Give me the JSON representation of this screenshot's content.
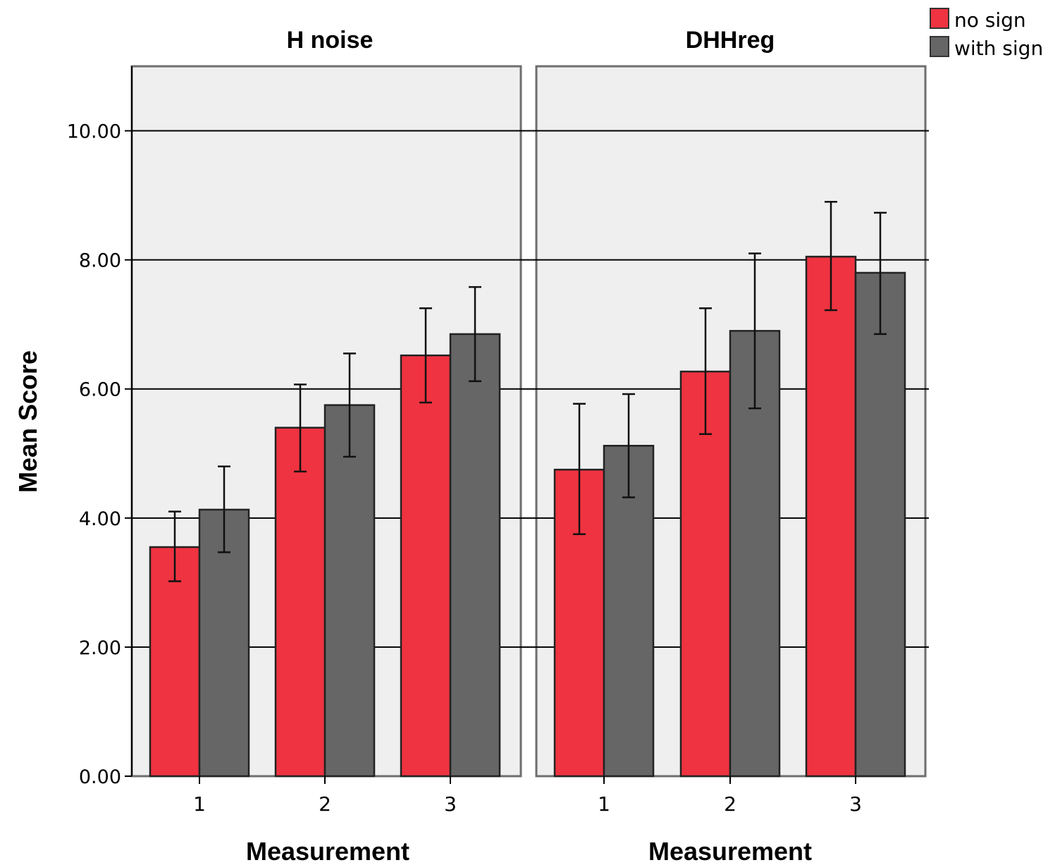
{
  "chart_data": {
    "type": "bar",
    "ylabel": "Mean Score",
    "xlabel": "Measurement",
    "ylim": [
      0,
      11
    ],
    "yticks": [
      "0.00",
      "2.00",
      "4.00",
      "6.00",
      "8.00",
      "10.00"
    ],
    "categories": [
      "1",
      "2",
      "3"
    ],
    "grid": true,
    "legend_placement": "top-right",
    "series_names": [
      "no sign",
      "with sign"
    ],
    "colors": {
      "no sign": "#ef3340",
      "with sign": "#666666",
      "panel_bg": "#efefef"
    },
    "panels": [
      {
        "title": "H noise",
        "xlabel": "Measurement",
        "series": [
          {
            "name": "no sign",
            "values": [
              3.55,
              5.4,
              6.52
            ],
            "err_low": [
              3.02,
              4.72,
              5.79
            ],
            "err_high": [
              4.1,
              6.07,
              7.25
            ]
          },
          {
            "name": "with sign",
            "values": [
              4.13,
              5.75,
              6.85
            ],
            "err_low": [
              3.47,
              4.95,
              6.12
            ],
            "err_high": [
              4.8,
              6.55,
              7.58
            ]
          }
        ]
      },
      {
        "title": "DHHreg",
        "xlabel": "Measurement",
        "series": [
          {
            "name": "no sign",
            "values": [
              4.75,
              6.27,
              8.05
            ],
            "err_low": [
              3.75,
              5.3,
              7.22
            ],
            "err_high": [
              5.77,
              7.25,
              8.9
            ]
          },
          {
            "name": "with sign",
            "values": [
              5.12,
              6.9,
              7.8
            ],
            "err_low": [
              4.32,
              5.7,
              6.85
            ],
            "err_high": [
              5.92,
              8.1,
              8.73
            ]
          }
        ]
      }
    ]
  }
}
